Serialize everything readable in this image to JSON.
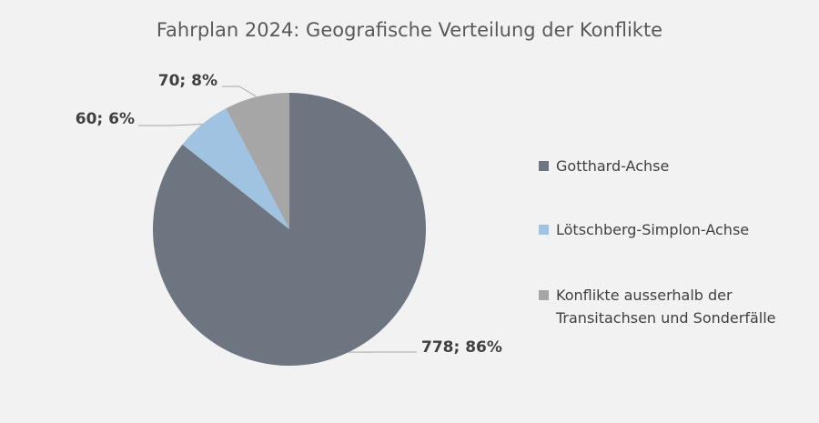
{
  "chart_data": {
    "type": "pie",
    "title": "Fahrplan 2024: Geografische Verteilung der Konflikte",
    "categories": [
      "Gotthard-Achse",
      "Lötschberg-Simplon-Achse",
      "Konflikte ausserhalb der Transitachsen und Sonderfälle"
    ],
    "values": [
      778,
      60,
      70
    ],
    "value_labels": [
      "778; 86%",
      "60; 6%",
      "70; 8%"
    ],
    "colors": [
      "#6d7580",
      "#9fc3e0",
      "#a6a6a6"
    ],
    "legend": "right"
  }
}
